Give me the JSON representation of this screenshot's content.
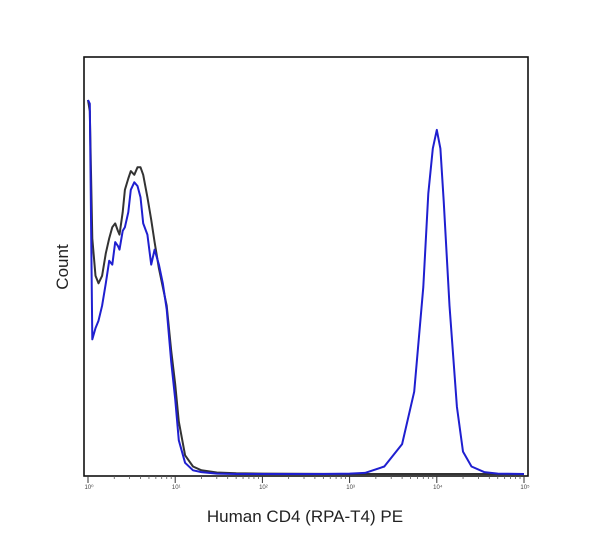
{
  "chart_data": {
    "type": "line",
    "title": "",
    "xlabel": "Human CD4 (RPA-T4) PE",
    "ylabel": "Count",
    "x_scale": "log",
    "xlim": [
      1,
      100000
    ],
    "ylim": [
      0,
      1
    ],
    "xticks": [
      {
        "value": 1,
        "label": "10⁰"
      },
      {
        "value": 10,
        "label": "10¹"
      },
      {
        "value": 100,
        "label": "10²"
      },
      {
        "value": 1000,
        "label": "10³"
      },
      {
        "value": 10000,
        "label": "10⁴"
      },
      {
        "value": 100000,
        "label": "10⁵"
      }
    ],
    "grid": false,
    "legend": "none",
    "series": [
      {
        "color": "#333333",
        "x": [
          1.0,
          1.05,
          1.12,
          1.22,
          1.32,
          1.45,
          1.6,
          1.75,
          1.9,
          2.05,
          2.2,
          2.3,
          2.5,
          2.65,
          2.9,
          3.1,
          3.4,
          3.7,
          4.0,
          4.3,
          4.8,
          5.3,
          5.8,
          6.5,
          7.2,
          8.0,
          9.0,
          10.0,
          11.0,
          13.0,
          16.0,
          20.0,
          30.0,
          50.0,
          100.0,
          1000.0,
          10000.0,
          100000.0
        ],
        "y": [
          1.0,
          0.97,
          0.63,
          0.53,
          0.51,
          0.53,
          0.59,
          0.63,
          0.66,
          0.67,
          0.65,
          0.64,
          0.7,
          0.76,
          0.79,
          0.81,
          0.8,
          0.82,
          0.82,
          0.8,
          0.74,
          0.68,
          0.62,
          0.55,
          0.5,
          0.45,
          0.33,
          0.24,
          0.14,
          0.05,
          0.02,
          0.01,
          0.004,
          0.002,
          0.001,
          0.0,
          0.0,
          0.0
        ]
      },
      {
        "color": "#1f1fd0",
        "x": [
          1.0,
          1.05,
          1.12,
          1.22,
          1.32,
          1.45,
          1.6,
          1.75,
          1.9,
          2.05,
          2.2,
          2.3,
          2.5,
          2.65,
          2.9,
          3.1,
          3.4,
          3.7,
          4.0,
          4.3,
          4.8,
          5.3,
          5.8,
          6.5,
          7.2,
          8.0,
          9.0,
          10.0,
          11.0,
          13.0,
          16.0,
          20.0,
          30.0,
          50.0,
          100.0,
          500.0,
          1000.0,
          1500.0,
          2500.0,
          4000.0,
          5500.0,
          7000.0,
          8000.0,
          9000.0,
          10000.0,
          11000.0,
          12000.0,
          14000.0,
          17000.0,
          20000.0,
          25000.0,
          35000.0,
          50000.0,
          100000.0
        ],
        "y": [
          1.0,
          0.99,
          0.36,
          0.39,
          0.41,
          0.45,
          0.51,
          0.57,
          0.56,
          0.62,
          0.61,
          0.6,
          0.65,
          0.66,
          0.7,
          0.76,
          0.78,
          0.77,
          0.74,
          0.67,
          0.64,
          0.56,
          0.6,
          0.56,
          0.51,
          0.44,
          0.3,
          0.2,
          0.09,
          0.03,
          0.01,
          0.005,
          0.001,
          0.0,
          0.0,
          0.0,
          0.001,
          0.003,
          0.02,
          0.08,
          0.22,
          0.5,
          0.75,
          0.87,
          0.92,
          0.87,
          0.73,
          0.45,
          0.18,
          0.06,
          0.02,
          0.005,
          0.001,
          0.0
        ]
      }
    ]
  }
}
